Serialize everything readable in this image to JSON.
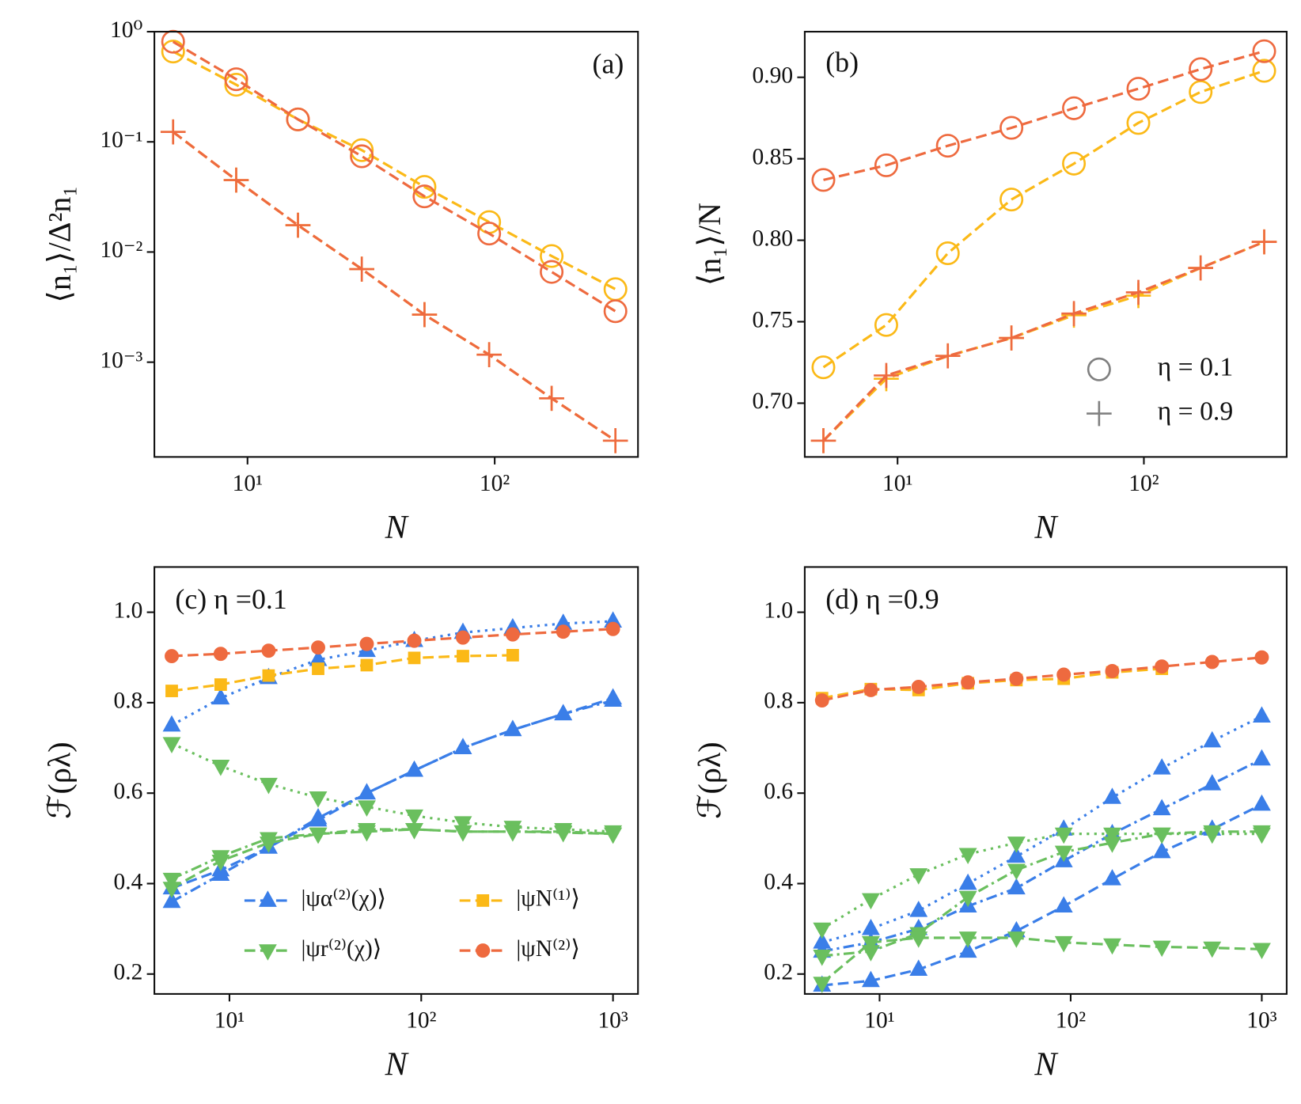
{
  "chart_data": [
    {
      "type": "line",
      "title": "(a)",
      "xlabel": "N",
      "ylabel": "⟨n₁⟩/Δ²n₁",
      "log_x": true,
      "log_y": true,
      "x": [
        5,
        9,
        16,
        29,
        52,
        95,
        170,
        308
      ],
      "xlim": [
        4.2,
        380
      ],
      "ylim": [
        0.000138,
        1
      ],
      "xticks": [
        {
          "value": 10,
          "label": "10¹"
        },
        {
          "value": 100,
          "label": "10²"
        }
      ],
      "yticks": [
        {
          "value": 1,
          "label": "10⁰"
        },
        {
          "value": 0.1,
          "label": "10⁻¹"
        },
        {
          "value": 0.01,
          "label": "10⁻²"
        },
        {
          "value": 0.001,
          "label": "10⁻³"
        }
      ],
      "series": [
        {
          "color": "#fbb917",
          "marker": "o",
          "marker_filled": false,
          "linestyle": "dashed",
          "values": [
            0.66,
            0.33,
            0.16,
            0.084,
            0.039,
            0.0187,
            0.0092,
            0.0046
          ]
        },
        {
          "color": "#ee6a3f",
          "marker": "o",
          "marker_filled": false,
          "linestyle": "dashed",
          "values": [
            0.81,
            0.37,
            0.16,
            0.074,
            0.032,
            0.0147,
            0.0066,
            0.0029
          ]
        },
        {
          "color": "#fbb917",
          "marker": "+",
          "marker_filled": false,
          "linestyle": "dashed",
          "values": [
            0.123,
            0.045,
            0.0175,
            0.007,
            0.0027,
            0.00117,
            0.00047,
            0.000194
          ]
        },
        {
          "color": "#ee6a3f",
          "marker": "+",
          "marker_filled": false,
          "linestyle": "dashed",
          "values": [
            0.123,
            0.045,
            0.0175,
            0.007,
            0.0027,
            0.00117,
            0.00047,
            0.000194
          ]
        }
      ]
    },
    {
      "type": "line",
      "title": "(b)",
      "xlabel": "N",
      "ylabel": "⟨n₁⟩/N",
      "log_x": true,
      "log_y": false,
      "x": [
        5,
        9,
        16,
        29,
        52,
        95,
        170,
        308
      ],
      "xlim": [
        4.2,
        380
      ],
      "ylim": [
        0.667,
        0.928
      ],
      "xticks": [
        {
          "value": 10,
          "label": "10¹"
        },
        {
          "value": 100,
          "label": "10²"
        }
      ],
      "yticks": [
        {
          "value": 0.7,
          "label": "0.70"
        },
        {
          "value": 0.75,
          "label": "0.75"
        },
        {
          "value": 0.8,
          "label": "0.80"
        },
        {
          "value": 0.85,
          "label": "0.85"
        },
        {
          "value": 0.9,
          "label": "0.90"
        }
      ],
      "series": [
        {
          "color": "#fbb917",
          "marker": "o",
          "marker_filled": false,
          "linestyle": "dashed",
          "values": [
            0.722,
            0.748,
            0.792,
            0.825,
            0.847,
            0.872,
            0.891,
            0.904
          ]
        },
        {
          "color": "#ee6a3f",
          "marker": "o",
          "marker_filled": false,
          "linestyle": "dashed",
          "values": [
            0.837,
            0.846,
            0.858,
            0.869,
            0.881,
            0.893,
            0.905,
            0.916
          ]
        },
        {
          "color": "#fbb917",
          "marker": "+",
          "marker_filled": false,
          "linestyle": "dashed",
          "values": [
            0.677,
            0.715,
            0.729,
            0.74,
            0.754,
            0.766,
            0.783,
            0.799
          ]
        },
        {
          "color": "#ee6a3f",
          "marker": "+",
          "marker_filled": false,
          "linestyle": "dashed",
          "values": [
            0.677,
            0.717,
            0.729,
            0.74,
            0.755,
            0.768,
            0.783,
            0.799
          ]
        }
      ],
      "legend": {
        "loc": "lower right",
        "color": "#808080",
        "entries": [
          {
            "marker": "o",
            "label": "η = 0.1"
          },
          {
            "marker": "+",
            "label": "η = 0.9"
          }
        ]
      }
    },
    {
      "type": "line",
      "title": "(c) η =0.1",
      "xlabel": "N",
      "ylabel": "ℱ(ρλ)",
      "log_x": true,
      "log_y": false,
      "x": [
        5,
        9,
        16,
        29,
        52,
        92,
        165,
        300,
        550,
        1000
      ],
      "xlim": [
        4.06,
        1350
      ],
      "ylim": [
        0.156,
        1.1
      ],
      "xticks": [
        {
          "value": 10,
          "label": "10¹"
        },
        {
          "value": 100,
          "label": "10²"
        },
        {
          "value": 1000,
          "label": "10³"
        }
      ],
      "yticks": [
        0.2,
        0.4,
        0.6,
        0.8,
        {
          "value": 1,
          "label": "1.0"
        }
      ],
      "series": [
        {
          "color": "#3a7ee8",
          "marker": "^",
          "marker_filled": true,
          "linestyle": "dotted",
          "values": [
            0.75,
            0.81,
            0.855,
            0.895,
            0.915,
            0.937,
            0.955,
            0.965,
            0.975,
            0.98
          ]
        },
        {
          "color": "#3a7ee8",
          "marker": "^",
          "marker_filled": true,
          "linestyle": "dashdot",
          "values": [
            0.36,
            0.42,
            0.48,
            0.545,
            0.6,
            0.65,
            0.7,
            0.74,
            0.775,
            0.805
          ]
        },
        {
          "name": "|ψα⁽²⁾(χ)⟩",
          "color": "#3a7ee8",
          "marker": "^",
          "marker_filled": true,
          "linestyle": "dashed",
          "values": [
            0.39,
            0.43,
            0.48,
            0.54,
            0.6,
            0.65,
            0.7,
            0.74,
            0.775,
            0.81
          ]
        },
        {
          "color": "#6abf5e",
          "marker": "v",
          "marker_filled": true,
          "linestyle": "dotted",
          "values": [
            0.71,
            0.66,
            0.62,
            0.59,
            0.57,
            0.55,
            0.535,
            0.525,
            0.52,
            0.515
          ]
        },
        {
          "color": "#6abf5e",
          "marker": "v",
          "marker_filled": true,
          "linestyle": "dashdot",
          "values": [
            0.41,
            0.46,
            0.5,
            0.51,
            0.52,
            0.52,
            0.515,
            0.515,
            0.515,
            0.51
          ]
        },
        {
          "name": "|ψr⁽²⁾(χ)⟩",
          "color": "#6abf5e",
          "marker": "v",
          "marker_filled": true,
          "linestyle": "dashed",
          "values": [
            0.39,
            0.45,
            0.49,
            0.51,
            0.515,
            0.52,
            0.515,
            0.515,
            0.513,
            0.51
          ]
        },
        {
          "name": "|ψN⁽¹⁾⟩",
          "color": "#fbb917",
          "marker": "s",
          "marker_filled": true,
          "linestyle": "dashed",
          "values": [
            0.826,
            0.84,
            0.86,
            0.875,
            0.883,
            0.899,
            0.903,
            0.905,
            null,
            null
          ]
        },
        {
          "name": "|ψN⁽²⁾⟩",
          "color": "#ee6a3f",
          "marker": "o",
          "marker_filled": true,
          "linestyle": "dashed",
          "values": [
            0.903,
            0.908,
            0.915,
            0.922,
            0.93,
            0.937,
            0.944,
            0.951,
            0.957,
            0.963
          ]
        }
      ],
      "legend": {
        "loc": "lower right",
        "columns": 2
      }
    },
    {
      "type": "line",
      "title": "(d) η =0.9",
      "xlabel": "N",
      "ylabel": "ℱ(ρλ)",
      "log_x": true,
      "log_y": false,
      "x": [
        5,
        9,
        16,
        29,
        52,
        92,
        165,
        300,
        550,
        1000
      ],
      "xlim": [
        4.06,
        1350
      ],
      "ylim": [
        0.156,
        1.1
      ],
      "xticks": [
        {
          "value": 10,
          "label": "10¹"
        },
        {
          "value": 100,
          "label": "10²"
        },
        {
          "value": 1000,
          "label": "10³"
        }
      ],
      "yticks": [
        0.2,
        0.4,
        0.6,
        0.8,
        {
          "value": 1,
          "label": "1.0"
        }
      ],
      "series": [
        {
          "color": "#3a7ee8",
          "marker": "^",
          "marker_filled": true,
          "linestyle": "dotted",
          "values": [
            0.27,
            0.3,
            0.34,
            0.4,
            0.46,
            0.52,
            0.59,
            0.655,
            0.715,
            0.77
          ]
        },
        {
          "color": "#3a7ee8",
          "marker": "^",
          "marker_filled": true,
          "linestyle": "dashdot",
          "values": [
            0.25,
            0.27,
            0.3,
            0.35,
            0.39,
            0.45,
            0.51,
            0.565,
            0.62,
            0.675
          ]
        },
        {
          "color": "#3a7ee8",
          "marker": "^",
          "marker_filled": true,
          "linestyle": "dashed",
          "values": [
            0.175,
            0.185,
            0.21,
            0.25,
            0.295,
            0.35,
            0.41,
            0.47,
            0.52,
            0.575
          ]
        },
        {
          "color": "#6abf5e",
          "marker": "v",
          "marker_filled": true,
          "linestyle": "dotted",
          "values": [
            0.3,
            0.365,
            0.42,
            0.465,
            0.49,
            0.51,
            0.51,
            0.51,
            0.51,
            0.51
          ]
        },
        {
          "color": "#6abf5e",
          "marker": "v",
          "marker_filled": true,
          "linestyle": "dashdot",
          "values": [
            0.24,
            0.25,
            0.29,
            0.37,
            0.43,
            0.47,
            0.49,
            0.51,
            0.515,
            0.515
          ]
        },
        {
          "color": "#6abf5e",
          "marker": "v",
          "marker_filled": true,
          "linestyle": "dashed",
          "values": [
            0.18,
            0.27,
            0.28,
            0.28,
            0.28,
            0.27,
            0.265,
            0.26,
            0.258,
            0.255
          ]
        },
        {
          "color": "#fbb917",
          "marker": "s",
          "marker_filled": true,
          "linestyle": "dashed",
          "values": [
            0.81,
            0.83,
            0.828,
            0.843,
            0.85,
            0.853,
            0.867,
            0.875,
            null,
            null
          ]
        },
        {
          "color": "#ee6a3f",
          "marker": "o",
          "marker_filled": true,
          "linestyle": "dashed",
          "values": [
            0.805,
            0.828,
            0.835,
            0.845,
            0.853,
            0.862,
            0.87,
            0.88,
            0.89,
            0.9
          ]
        }
      ]
    }
  ]
}
